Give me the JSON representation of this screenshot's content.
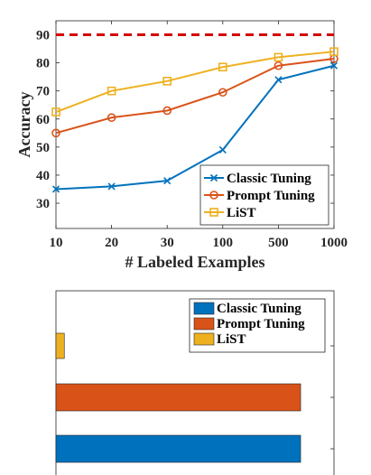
{
  "chart_data": [
    {
      "type": "line",
      "categories": [
        "10",
        "20",
        "30",
        "100",
        "500",
        "1000"
      ],
      "series": [
        {
          "name": "Classic Tuning",
          "values": [
            35,
            36,
            38,
            49,
            74,
            79
          ],
          "color": "#0072BD",
          "marker": "x"
        },
        {
          "name": "Prompt Tuning",
          "values": [
            55,
            60.5,
            63,
            69.5,
            79,
            81.5
          ],
          "color": "#D95319",
          "marker": "circle"
        },
        {
          "name": "LiST",
          "values": [
            62.5,
            70,
            73.5,
            78.5,
            82,
            84
          ],
          "color": "#EDB120",
          "marker": "square"
        }
      ],
      "reference_line": {
        "value": 90,
        "color": "#D40000",
        "style": "dashed"
      },
      "xlabel": "# Labeled Examples",
      "ylabel": "Accuracy",
      "yticks": [
        30,
        40,
        50,
        60,
        70,
        80,
        90
      ],
      "ylim": [
        21,
        95
      ],
      "grid": false,
      "legend": "bottom-right"
    },
    {
      "type": "bar",
      "orientation": "horizontal",
      "series": [
        {
          "name": "Classic Tuning",
          "color": "#0072BD"
        },
        {
          "name": "Prompt Tuning",
          "color": "#D95319"
        },
        {
          "name": "LiST",
          "color": "#EDB120"
        }
      ],
      "bars": [
        {
          "series": "LiST",
          "value": 0.03
        },
        {
          "series": "Prompt Tuning",
          "value": 0.88
        },
        {
          "series": "Classic Tuning",
          "value": 0.88
        }
      ],
      "legend": "top-right",
      "grid": false
    }
  ]
}
